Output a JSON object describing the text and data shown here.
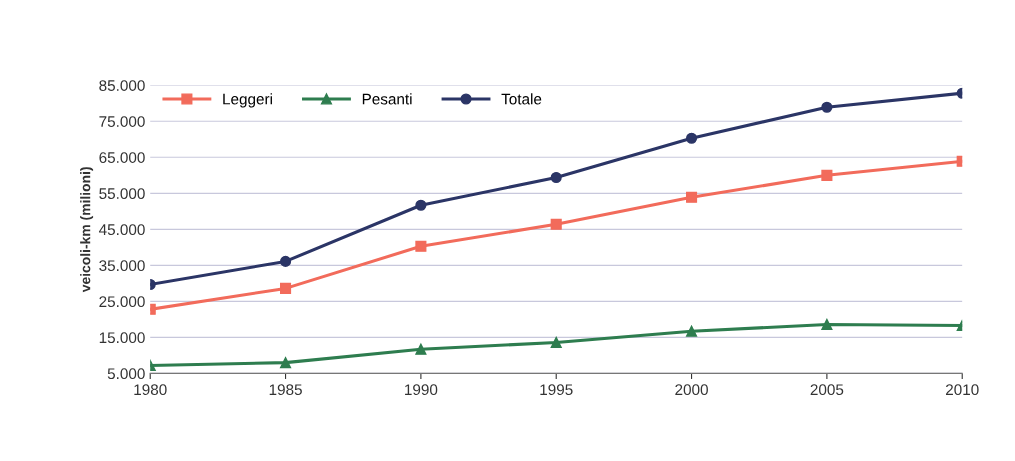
{
  "chart_data": {
    "type": "line",
    "ylabel": "veicoli-km (milioni)",
    "x": [
      1980,
      1985,
      1990,
      1995,
      2000,
      2005,
      2010
    ],
    "xlim": [
      1980,
      2010
    ],
    "xticks": [
      1980,
      1985,
      1990,
      1995,
      2000,
      2005,
      2010
    ],
    "ylim": [
      5000,
      85000
    ],
    "yticks": [
      {
        "value": 5000,
        "label": "5.000"
      },
      {
        "value": 15000,
        "label": "15.000"
      },
      {
        "value": 25000,
        "label": "25.000"
      },
      {
        "value": 35000,
        "label": "35.000"
      },
      {
        "value": 45000,
        "label": "45.000"
      },
      {
        "value": 55000,
        "label": "55.000"
      },
      {
        "value": 65000,
        "label": "65.000"
      },
      {
        "value": 75000,
        "label": "75.000"
      },
      {
        "value": 85000,
        "label": "85.000"
      }
    ],
    "grid": "y",
    "legend": "top left",
    "series": [
      {
        "name": "Leggeri",
        "color": "#f26b5b",
        "marker": "square",
        "values": [
          22800,
          28600,
          40300,
          46400,
          53900,
          60000,
          63900
        ]
      },
      {
        "name": "Pesanti",
        "color": "#2e7d4f",
        "marker": "triangle",
        "values": [
          7200,
          8000,
          11700,
          13600,
          16700,
          18600,
          18300
        ]
      },
      {
        "name": "Totale",
        "color": "#2b3566",
        "marker": "circle",
        "values": [
          29700,
          36100,
          51700,
          59400,
          70300,
          78900,
          82800
        ]
      }
    ]
  }
}
